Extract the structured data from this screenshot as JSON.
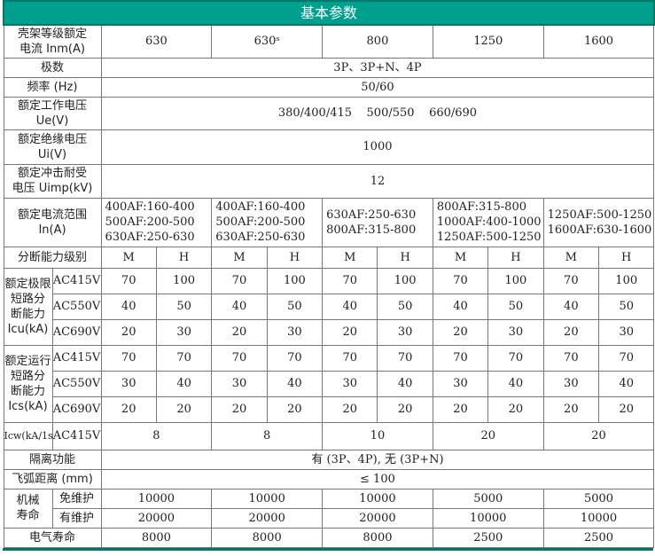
{
  "title": "基本参数",
  "colors": {
    "header": "#00a08e"
  },
  "rows": [
    {
      "h": 37,
      "label": [
        "壳架等级额定",
        "电流 Inm(A)"
      ],
      "cells": [
        [
          "630",
          2
        ],
        [
          "630ˢ",
          2
        ],
        [
          "800",
          2
        ],
        [
          "1250",
          2
        ],
        [
          "1600",
          2
        ]
      ]
    },
    {
      "h": 22,
      "label": [
        "极数"
      ],
      "cells": [
        [
          "3P、3P+N、4P",
          10
        ]
      ]
    },
    {
      "h": 22,
      "label": [
        "频率 (Hz)"
      ],
      "cells": [
        [
          "50/60",
          10
        ]
      ]
    },
    {
      "h": 37,
      "label": [
        "额定工作电压",
        "Ue(V)"
      ],
      "cells": [
        [
          "380/400/415    500/550    660/690",
          10
        ]
      ]
    },
    {
      "h": 39,
      "label": [
        "额定绝缘电压",
        "Ui(V)"
      ],
      "cells": [
        [
          "1000",
          10
        ]
      ]
    },
    {
      "h": 38,
      "label": [
        "额定冲击耐受",
        "电压 Uimp(kV)"
      ],
      "cells": [
        [
          "12",
          10
        ]
      ]
    },
    {
      "h": 55,
      "label": [
        "额定电流范围",
        "In(A)"
      ],
      "multi": true,
      "cells": [
        [
          "400AF:160-400\n500AF:200-500\n630AF:250-630",
          2
        ],
        [
          "400AF:160-400\n500AF:200-500\n630AF:250-630",
          2
        ],
        [
          "630AF:250-630\n800AF:315-800",
          2
        ],
        [
          "800AF:315-800\n1000AF:400-1000\n1250AF:500-1250",
          2
        ],
        [
          "1250AF:500-1250\n1600AF:630-1600",
          2
        ]
      ]
    },
    {
      "h": 24,
      "label": [
        "分断能力级别"
      ],
      "cells": [
        [
          "M",
          1
        ],
        [
          "H",
          1
        ],
        [
          "M",
          1
        ],
        [
          "H",
          1
        ],
        [
          "M",
          1
        ],
        [
          "H",
          1
        ],
        [
          "M",
          1
        ],
        [
          "H",
          1
        ],
        [
          "M",
          1
        ],
        [
          "H",
          1
        ]
      ]
    }
  ],
  "icu": {
    "label": [
      "额定极限",
      "短路分",
      "断能力",
      "Icu(kA)"
    ],
    "rows": [
      {
        "v": "AC415V",
        "vals": [
          "70",
          "100",
          "70",
          "100",
          "70",
          "100",
          "70",
          "100",
          "70",
          "100"
        ]
      },
      {
        "v": "AC550V",
        "vals": [
          "40",
          "50",
          "40",
          "50",
          "40",
          "50",
          "40",
          "50",
          "40",
          "50"
        ]
      },
      {
        "v": "AC690V",
        "vals": [
          "20",
          "30",
          "20",
          "30",
          "20",
          "30",
          "20",
          "30",
          "20",
          "30"
        ]
      }
    ]
  },
  "ics": {
    "label": [
      "额定运行",
      "短路分",
      "断能力",
      "Ics(kA)"
    ],
    "rows": [
      {
        "v": "AC415V",
        "vals": [
          "70",
          "70",
          "70",
          "70",
          "70",
          "70",
          "70",
          "70",
          "70",
          "70"
        ]
      },
      {
        "v": "AC550V",
        "vals": [
          "30",
          "40",
          "30",
          "40",
          "30",
          "40",
          "30",
          "40",
          "30",
          "40"
        ]
      },
      {
        "v": "AC690V",
        "vals": [
          "20",
          "20",
          "20",
          "20",
          "20",
          "20",
          "20",
          "20",
          "20",
          "20"
        ]
      }
    ]
  },
  "icw": {
    "label": "Icw(kA/1s)",
    "v": "AC415V",
    "vals": [
      "8",
      "8",
      "10",
      "20",
      "20"
    ]
  },
  "isolation": {
    "label": "隔离功能",
    "value": "有 (3P、4P), 无 (3P+N)"
  },
  "arc": {
    "label": "飞弧距离 (mm)",
    "value": "≤ 100"
  },
  "mech": {
    "label": [
      "机械",
      "寿命"
    ],
    "rows": [
      {
        "sub": "免维护",
        "vals": [
          "10000",
          "10000",
          "10000",
          "5000",
          "5000"
        ]
      },
      {
        "sub": "有维护",
        "vals": [
          "20000",
          "20000",
          "20000",
          "10000",
          "10000"
        ]
      }
    ]
  },
  "elec": {
    "label": "电气寿命",
    "vals": [
      "8000",
      "8000",
      "8000",
      "2500",
      "2500"
    ]
  }
}
